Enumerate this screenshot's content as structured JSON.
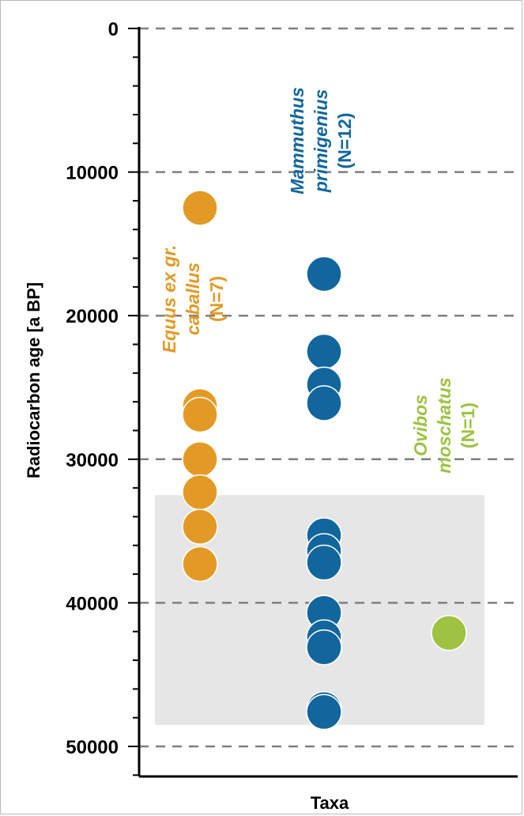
{
  "chart_data": {
    "type": "scatter",
    "xlabel": "Taxa",
    "ylabel": "Radiocarbon age [a BP]",
    "ylim": [
      0,
      52000
    ],
    "y_inverted": true,
    "yticks": [
      "0",
      "10000",
      "20000",
      "30000",
      "40000",
      "50000"
    ],
    "grid": "dashed horizontal at major ticks",
    "highlight_band": {
      "y_from": 32500,
      "y_to": 48500,
      "color": "#e6e6e6"
    },
    "series": [
      {
        "name_parts": [
          "Equus ex gr.",
          "caballus",
          "(N=7)"
        ],
        "color": "#e39a25",
        "x_index": 0,
        "y": [
          12500,
          26300,
          26900,
          30000,
          32300,
          34700,
          37300
        ]
      },
      {
        "name_parts": [
          "Mammuthus",
          "primigenius",
          "(N=12)"
        ],
        "color": "#11669e",
        "x_index": 1,
        "y": [
          17100,
          22500,
          24800,
          26100,
          35300,
          36400,
          37200,
          40700,
          42400,
          43100,
          47400,
          47600
        ]
      },
      {
        "name_parts": [
          "Ovibos",
          "moschatus",
          "(N=1)"
        ],
        "color": "#9dc341",
        "x_index": 2,
        "y": [
          42100
        ]
      }
    ]
  }
}
